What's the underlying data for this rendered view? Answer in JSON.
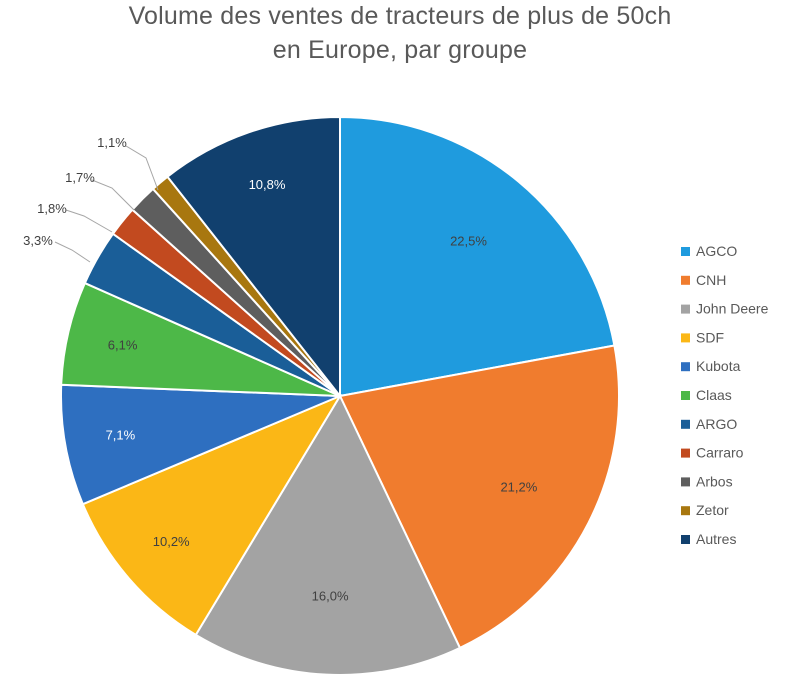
{
  "chart_data": {
    "type": "pie",
    "title_lines": [
      "Volume des ventes de tracteurs de plus de 50ch",
      "en Europe, par groupe"
    ],
    "legend_position": "right",
    "slices": [
      {
        "name": "AGCO",
        "value": 22.5,
        "label": "22,5%",
        "color": "#1F9BDE"
      },
      {
        "name": "CNH",
        "value": 21.2,
        "label": "21,2%",
        "color": "#F07C2E"
      },
      {
        "name": "John Deere",
        "value": 16.0,
        "label": "16,0%",
        "color": "#A3A3A3"
      },
      {
        "name": "SDF",
        "value": 10.2,
        "label": "10,2%",
        "color": "#FBB716"
      },
      {
        "name": "Kubota",
        "value": 7.1,
        "label": "7,1%",
        "color": "#2E6FC0"
      },
      {
        "name": "Claas",
        "value": 6.1,
        "label": "6,1%",
        "color": "#4DB848"
      },
      {
        "name": "ARGO",
        "value": 3.3,
        "label": "3,3%",
        "color": "#1A5E98"
      },
      {
        "name": "Carraro",
        "value": 1.8,
        "label": "1,8%",
        "color": "#C24A1F"
      },
      {
        "name": "Arbos",
        "value": 1.7,
        "label": "1,7%",
        "color": "#5E5E5E"
      },
      {
        "name": "Zetor",
        "value": 1.1,
        "label": "1,1%",
        "color": "#A8770F"
      },
      {
        "name": "Autres",
        "value": 10.8,
        "label": "10,8%",
        "color": "#11406E"
      }
    ]
  }
}
